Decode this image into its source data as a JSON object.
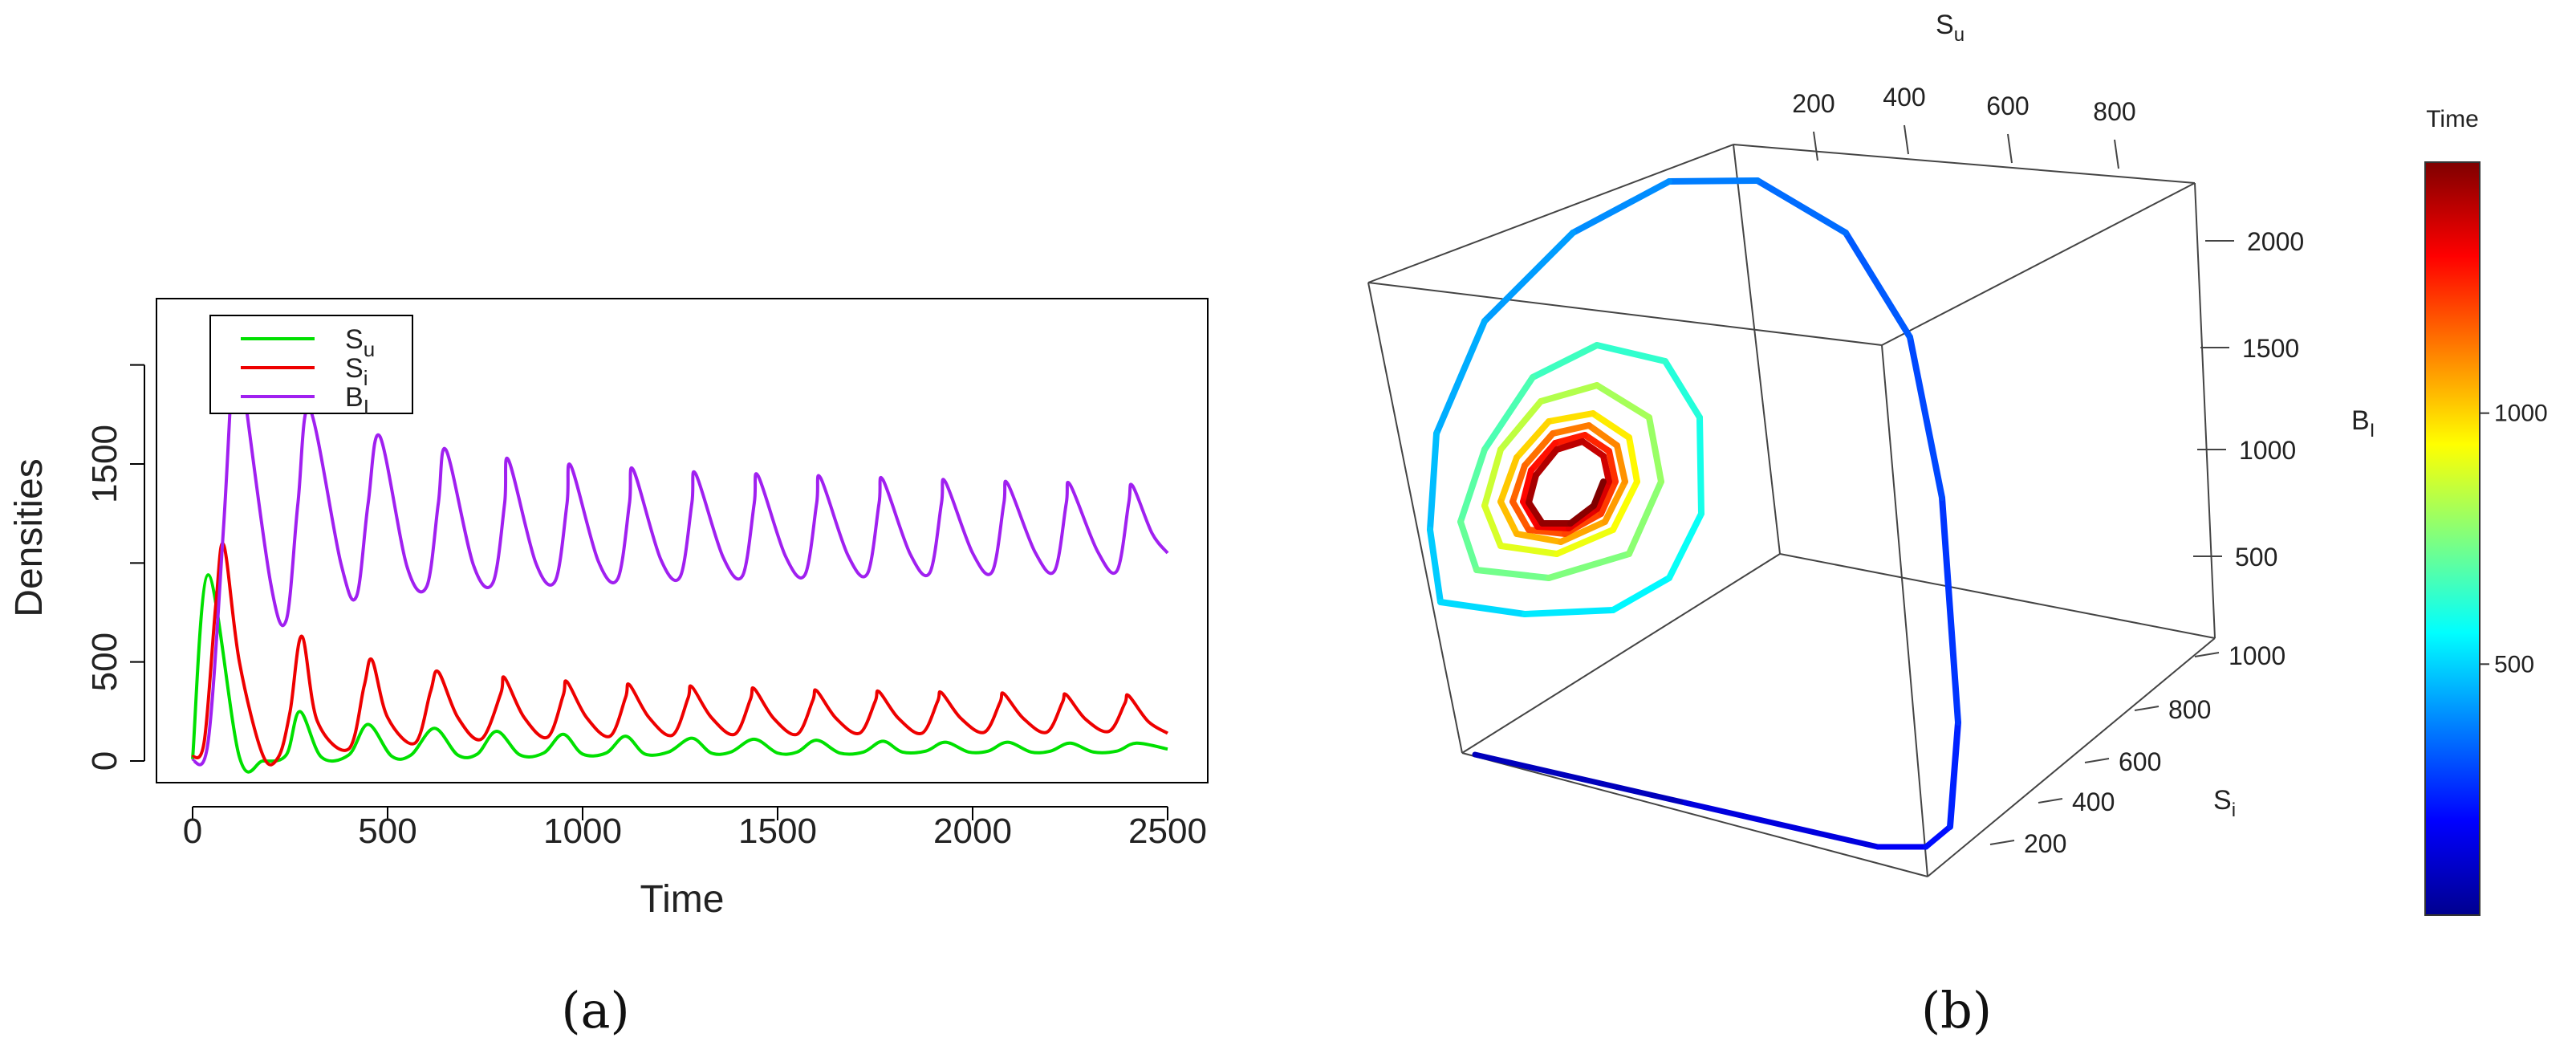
{
  "chart_data": [
    {
      "panel": "a",
      "type": "line",
      "caption": "(a)",
      "xlabel": "Time",
      "ylabel": "Densities",
      "xlim": [
        0,
        2500
      ],
      "ylim": [
        0,
        2400
      ],
      "xticks": [
        "0",
        "500",
        "1000",
        "1500",
        "2000",
        "2500"
      ],
      "yticks": [
        "0",
        "500",
        "1500"
      ],
      "grid": false,
      "legend": "top-left",
      "series": [
        {
          "name": "S_u",
          "color": "#00e000",
          "x": [
            0,
            40,
            120,
            180,
            240,
            275,
            330,
            400,
            450,
            510,
            560,
            620,
            680,
            730,
            780,
            840,
            900,
            950,
            1000,
            1060,
            1110,
            1160,
            1220,
            1280,
            1330,
            1380,
            1440,
            1500,
            1550,
            1600,
            1660,
            1720,
            1770,
            1820,
            1880,
            1930,
            1990,
            2040,
            2090,
            2150,
            2200,
            2250,
            2310,
            2370,
            2420,
            2500
          ],
          "y": [
            10,
            940,
            20,
            0,
            30,
            250,
            20,
            30,
            185,
            25,
            30,
            165,
            30,
            35,
            150,
            30,
            40,
            135,
            35,
            40,
            125,
            35,
            45,
            115,
            40,
            45,
            110,
            40,
            45,
            105,
            40,
            45,
            100,
            45,
            50,
            95,
            45,
            50,
            95,
            45,
            50,
            90,
            45,
            50,
            90,
            60
          ]
        },
        {
          "name": "S_i",
          "color": "#ee0000",
          "x": [
            0,
            30,
            60,
            80,
            120,
            180,
            220,
            250,
            280,
            320,
            400,
            440,
            460,
            500,
            570,
            610,
            630,
            680,
            740,
            790,
            800,
            850,
            910,
            950,
            960,
            1010,
            1070,
            1110,
            1120,
            1170,
            1230,
            1270,
            1280,
            1330,
            1390,
            1430,
            1440,
            1490,
            1550,
            1590,
            1600,
            1650,
            1710,
            1750,
            1760,
            1810,
            1870,
            1910,
            1920,
            1970,
            2030,
            2070,
            2080,
            2130,
            2190,
            2230,
            2240,
            2290,
            2350,
            2390,
            2400,
            2450,
            2500
          ],
          "y": [
            20,
            100,
            800,
            1090,
            500,
            30,
            20,
            250,
            630,
            200,
            60,
            380,
            510,
            220,
            90,
            350,
            450,
            220,
            110,
            340,
            420,
            220,
            120,
            330,
            400,
            220,
            125,
            320,
            385,
            220,
            130,
            315,
            375,
            220,
            135,
            310,
            365,
            215,
            135,
            305,
            355,
            215,
            140,
            300,
            350,
            215,
            140,
            300,
            345,
            215,
            145,
            295,
            340,
            215,
            145,
            295,
            335,
            210,
            150,
            290,
            330,
            200,
            140
          ]
        },
        {
          "name": "B_I",
          "color": "#a020f0",
          "x": [
            0,
            40,
            80,
            110,
            130,
            200,
            240,
            270,
            300,
            380,
            420,
            450,
            480,
            550,
            600,
            630,
            650,
            720,
            770,
            800,
            810,
            880,
            930,
            960,
            970,
            1040,
            1090,
            1120,
            1130,
            1200,
            1250,
            1280,
            1290,
            1360,
            1410,
            1440,
            1450,
            1520,
            1570,
            1600,
            1610,
            1680,
            1730,
            1760,
            1770,
            1840,
            1890,
            1920,
            1930,
            2000,
            2050,
            2080,
            2090,
            2160,
            2210,
            2240,
            2250,
            2320,
            2370,
            2400,
            2410,
            2460,
            2500
          ],
          "y": [
            0,
            100,
            1200,
            2200,
            1900,
            900,
            710,
            1300,
            1780,
            1000,
            830,
            1300,
            1640,
            980,
            880,
            1300,
            1570,
            990,
            900,
            1300,
            1520,
            1000,
            910,
            1300,
            1490,
            1010,
            920,
            1300,
            1470,
            1020,
            930,
            1300,
            1450,
            1030,
            935,
            1300,
            1440,
            1035,
            940,
            1300,
            1430,
            1040,
            945,
            1300,
            1420,
            1045,
            950,
            1300,
            1410,
            1050,
            955,
            1300,
            1400,
            1055,
            960,
            1300,
            1395,
            1060,
            960,
            1300,
            1390,
            1150,
            1050
          ]
        }
      ]
    },
    {
      "panel": "b",
      "type": "line",
      "caption": "(b)",
      "projection": "3d",
      "axis_labels": {
        "x": "S_u",
        "y": "S_i",
        "z": "B_I"
      },
      "xticks": [
        "200",
        "400",
        "600",
        "800"
      ],
      "yticks": [
        "200",
        "400",
        "600",
        "800",
        "1000"
      ],
      "zticks": [
        "500",
        "1000",
        "1500",
        "2000"
      ],
      "xlim": [
        0,
        1000
      ],
      "ylim": [
        0,
        1100
      ],
      "zlim": [
        0,
        2400
      ],
      "color_by": "Time",
      "colorbar": {
        "label": "Time",
        "ticks": [
          "500",
          "1000"
        ],
        "range": [
          0,
          1500
        ],
        "colors": [
          "#00008f",
          "#0000ff",
          "#007fff",
          "#00ffff",
          "#7fff7f",
          "#ffff00",
          "#ff7f00",
          "#ff0000",
          "#7f0000"
        ]
      },
      "trajectory": {
        "description_points": "Su, Si, BI, time",
        "points": [
          [
            0,
            1000,
            0,
            0
          ],
          [
            80,
            700,
            0,
            10
          ],
          [
            150,
            300,
            0,
            20
          ],
          [
            190,
            60,
            0,
            30
          ],
          [
            200,
            20,
            300,
            40
          ],
          [
            190,
            10,
            1200,
            55
          ],
          [
            160,
            15,
            1900,
            70
          ],
          [
            100,
            20,
            2250,
            85
          ],
          [
            40,
            30,
            2350,
            100
          ],
          [
            0,
            60,
            2200,
            115
          ],
          [
            0,
            140,
            1600,
            140
          ],
          [
            0,
            240,
            900,
            170
          ],
          [
            30,
            300,
            600,
            200
          ],
          [
            100,
            320,
            500,
            230
          ],
          [
            170,
            280,
            700,
            260
          ],
          [
            180,
            200,
            1200,
            290
          ],
          [
            130,
            170,
            1500,
            320
          ],
          [
            70,
            180,
            1550,
            350
          ],
          [
            30,
            230,
            1300,
            380
          ],
          [
            50,
            280,
            900,
            420
          ],
          [
            120,
            290,
            800,
            460
          ],
          [
            150,
            250,
            1050,
            500
          ],
          [
            110,
            220,
            1300,
            540
          ],
          [
            60,
            235,
            1250,
            580
          ],
          [
            70,
            265,
            1000,
            630
          ],
          [
            120,
            265,
            950,
            680
          ],
          [
            125,
            245,
            1150,
            730
          ],
          [
            85,
            240,
            1210,
            780
          ],
          [
            75,
            258,
            1060,
            840
          ],
          [
            110,
            258,
            1020,
            900
          ],
          [
            115,
            248,
            1140,
            960
          ],
          [
            90,
            246,
            1170,
            1020
          ],
          [
            82,
            256,
            1080,
            1080
          ],
          [
            105,
            256,
            1050,
            1140
          ],
          [
            110,
            250,
            1130,
            1200
          ],
          [
            92,
            249,
            1150,
            1260
          ],
          [
            86,
            255,
            1090,
            1320
          ],
          [
            102,
            255,
            1070,
            1380
          ],
          [
            106,
            251,
            1125,
            1440
          ],
          [
            95,
            250,
            1140,
            1500
          ]
        ]
      }
    }
  ]
}
